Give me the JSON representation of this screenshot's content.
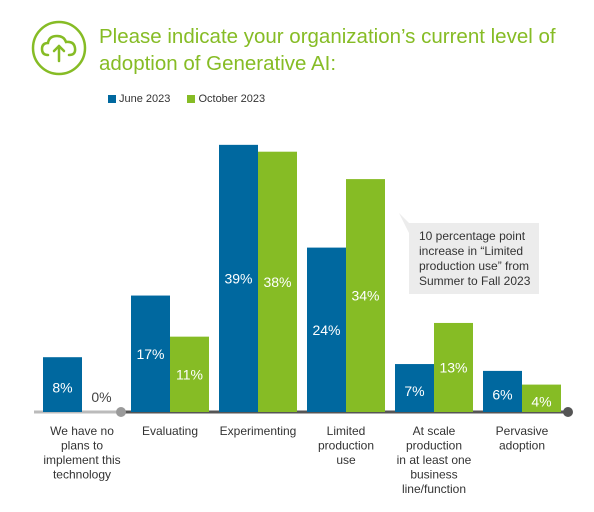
{
  "title": "Please indicate your organization’s current level of adoption of Generative AI:",
  "icon": "cloud-upload-icon",
  "colors": {
    "june": "#00689f",
    "october": "#86bc25",
    "title": "#86bc25",
    "annotation_bg": "#ececec"
  },
  "chart_data": {
    "type": "bar",
    "categories": [
      [
        "We have no",
        "plans to",
        "implement this",
        "technology"
      ],
      [
        "Evaluating"
      ],
      [
        "Experimenting"
      ],
      [
        "Limited",
        "production",
        "use"
      ],
      [
        "At scale",
        "production",
        "in at least one",
        "business",
        "line/function"
      ],
      [
        "Pervasive",
        "adoption"
      ]
    ],
    "series": [
      {
        "name": "June 2023",
        "values": [
          8,
          17,
          39,
          24,
          7,
          6
        ]
      },
      {
        "name": "October 2023",
        "values": [
          0,
          11,
          38,
          34,
          13,
          4
        ]
      }
    ],
    "value_suffix": "%",
    "ylim": [
      0,
      40
    ],
    "grid": false,
    "legend_position": "top-left",
    "annotation": "10 percentage point increase in “Limited production use” from Summer to Fall 2023"
  }
}
